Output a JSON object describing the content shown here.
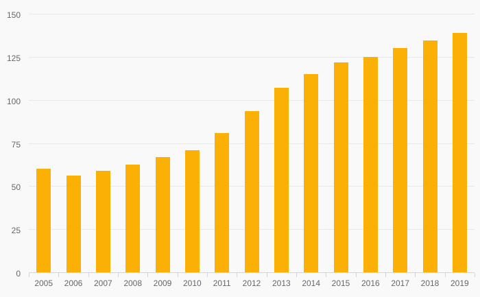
{
  "chart_data": {
    "type": "bar",
    "title": "",
    "xlabel": "",
    "ylabel": "",
    "categories": [
      "2005",
      "2006",
      "2007",
      "2008",
      "2009",
      "2010",
      "2011",
      "2012",
      "2013",
      "2014",
      "2015",
      "2016",
      "2017",
      "2018",
      "2019"
    ],
    "values": [
      60,
      56,
      59,
      62.5,
      67,
      71,
      81,
      93.5,
      107,
      115,
      122,
      125,
      130,
      134.5,
      139
    ],
    "ylim": [
      0,
      150
    ],
    "yticks": [
      0,
      25,
      50,
      75,
      100,
      125,
      150
    ],
    "grid": true,
    "legend": false,
    "colors": {
      "bar": "#fab005",
      "background": "#f9f9f9",
      "gridline": "#e8e8e8",
      "axis_line": "#ccd6eb",
      "tick": "#ccd6eb",
      "label_text": "#666666"
    }
  }
}
